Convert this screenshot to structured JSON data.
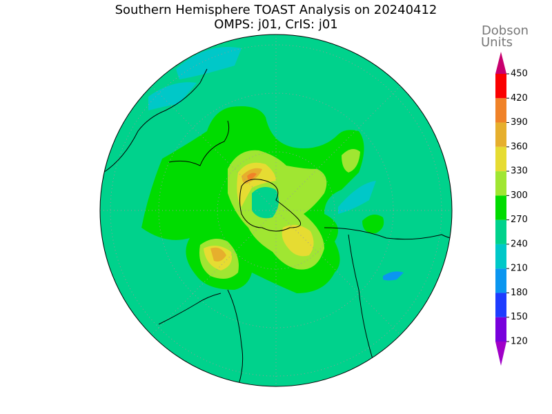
{
  "map": {
    "title": "Southern Hemisphere TOAST Analysis on 20240412",
    "subtitle": "OMPS: j01, CrIS: j01",
    "colorbar": {
      "label": [
        "Dobson",
        "Units"
      ],
      "ticks": [
        120,
        150,
        180,
        210,
        240,
        270,
        300,
        330,
        360,
        390,
        420,
        450
      ],
      "colors": [
        "#a000c8",
        "#7800dc",
        "#1e3cff",
        "#0a96f0",
        "#00c8c8",
        "#00d28c",
        "#00dc00",
        "#a0e632",
        "#e6dc32",
        "#e6af2d",
        "#f08228",
        "#fa0000",
        "#c8006e"
      ]
    }
  }
}
